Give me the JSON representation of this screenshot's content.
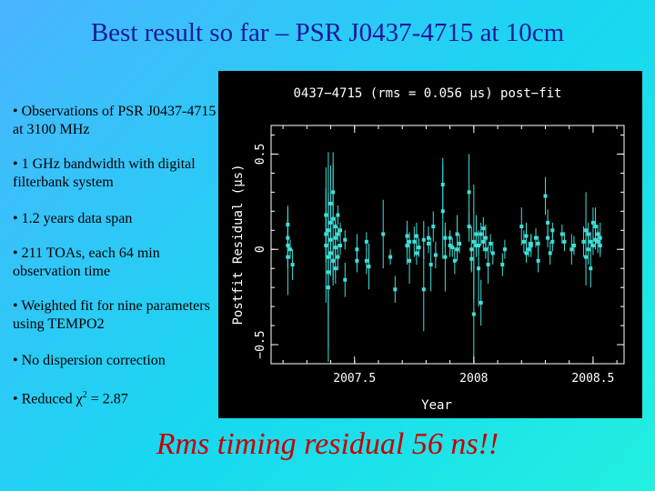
{
  "slide": {
    "title": "Best result so far – PSR J0437-4715 at 10cm",
    "bullets": [
      "• Observations of PSR J0437-4715 at 3100 MHz",
      "• 1 GHz bandwidth with digital filterbank system",
      "• 1.2 years data span",
      "• 211 TOAs, each 64 min observation time",
      "• Weighted fit for nine parameters using TEMPO2",
      "• No dispersion correction"
    ],
    "chi_prefix": "• Reduced ",
    "chi_symbol": "χ",
    "chi_sup": "2",
    "chi_suffix": " = 2.87",
    "footer": "Rms timing residual 56 ns!!"
  },
  "colors": {
    "title": "#1a1a9a",
    "footer": "#c80000",
    "points": "#40e0d8",
    "axes": "#ffffff",
    "plot_bg": "#000000"
  },
  "chart_data": {
    "type": "scatter",
    "title": "0437−4715 (rms = 0.056 μs) post−fit",
    "xlabel": "Year",
    "ylabel": "Postfit Residual (μs)",
    "xlim": [
      2007.15,
      2008.63
    ],
    "ylim": [
      -0.6,
      0.65
    ],
    "xticks": [
      2007.5,
      2008,
      2008.5
    ],
    "xtick_labels": [
      "2007.5",
      "2008",
      "2008.5"
    ],
    "yticks": [
      -0.5,
      0,
      0.5
    ],
    "ytick_labels": [
      "−0.5",
      "0",
      "0.5"
    ],
    "points": [
      [
        2007.22,
        0.13,
        0.1
      ],
      [
        2007.22,
        0.02,
        0.06
      ],
      [
        2007.22,
        -0.04,
        0.2
      ],
      [
        2007.22,
        0.06,
        0.16
      ],
      [
        2007.23,
        0.0,
        0.05
      ],
      [
        2007.24,
        -0.08,
        0.08
      ],
      [
        2007.38,
        0.18,
        0.25
      ],
      [
        2007.38,
        0.08,
        0.12
      ],
      [
        2007.38,
        0.02,
        0.3
      ],
      [
        2007.39,
        -0.04,
        0.55
      ],
      [
        2007.39,
        -0.12,
        0.4
      ],
      [
        2007.39,
        0.1,
        0.2
      ],
      [
        2007.39,
        -0.2,
        0.15
      ],
      [
        2007.4,
        0.24,
        0.2
      ],
      [
        2007.4,
        0.14,
        0.1
      ],
      [
        2007.4,
        0.05,
        0.08
      ],
      [
        2007.4,
        -0.02,
        0.12
      ],
      [
        2007.41,
        0.16,
        0.35
      ],
      [
        2007.41,
        0.3,
        0.15
      ],
      [
        2007.41,
        -0.06,
        0.1
      ],
      [
        2007.42,
        0.12,
        0.05
      ],
      [
        2007.42,
        0.06,
        0.09
      ],
      [
        2007.42,
        0.01,
        0.06
      ],
      [
        2007.42,
        -0.1,
        0.08
      ],
      [
        2007.43,
        0.18,
        0.05
      ],
      [
        2007.43,
        0.08,
        0.04
      ],
      [
        2007.43,
        -0.04,
        0.07
      ],
      [
        2007.44,
        0.02,
        0.05
      ],
      [
        2007.44,
        0.1,
        0.04
      ],
      [
        2007.46,
        0.05,
        0.05
      ],
      [
        2007.46,
        -0.16,
        0.09
      ],
      [
        2007.51,
        0.0,
        0.08
      ],
      [
        2007.51,
        -0.06,
        0.06
      ],
      [
        2007.55,
        -0.06,
        0.07
      ],
      [
        2007.55,
        0.04,
        0.05
      ],
      [
        2007.56,
        -0.09,
        0.12
      ],
      [
        2007.62,
        0.08,
        0.18
      ],
      [
        2007.65,
        -0.04,
        0.04
      ],
      [
        2007.67,
        -0.21,
        0.07
      ],
      [
        2007.72,
        0.02,
        0.1
      ],
      [
        2007.72,
        0.07,
        0.08
      ],
      [
        2007.73,
        -0.06,
        0.12
      ],
      [
        2007.73,
        0.04,
        0.05
      ],
      [
        2007.75,
        0.04,
        0.08
      ],
      [
        2007.76,
        -0.02,
        0.06
      ],
      [
        2007.76,
        0.07,
        0.07
      ],
      [
        2007.77,
        0.01,
        0.05
      ],
      [
        2007.79,
        -0.21,
        0.22
      ],
      [
        2007.79,
        0.05,
        0.1
      ],
      [
        2007.81,
        0.06,
        0.06
      ],
      [
        2007.81,
        0.03,
        0.05
      ],
      [
        2007.82,
        -0.08,
        0.14
      ],
      [
        2007.83,
        0.12,
        0.08
      ],
      [
        2007.84,
        -0.03,
        0.07
      ],
      [
        2007.87,
        0.34,
        0.14
      ],
      [
        2007.87,
        0.2,
        0.25
      ],
      [
        2007.88,
        -0.04,
        0.18
      ],
      [
        2007.88,
        0.06,
        0.05
      ],
      [
        2007.9,
        0.02,
        0.06
      ],
      [
        2007.9,
        0.06,
        0.04
      ],
      [
        2007.91,
        0.01,
        0.05
      ],
      [
        2007.92,
        -0.06,
        0.07
      ],
      [
        2007.93,
        0.08,
        0.1
      ],
      [
        2007.93,
        0.0,
        0.06
      ],
      [
        2007.94,
        0.03,
        0.05
      ],
      [
        2007.98,
        0.3,
        0.2
      ],
      [
        2007.98,
        0.12,
        0.08
      ],
      [
        2007.99,
        0.0,
        0.12
      ],
      [
        2007.99,
        -0.05,
        0.06
      ],
      [
        2008.0,
        0.04,
        0.3
      ],
      [
        2008.0,
        -0.34,
        0.3
      ],
      [
        2008.01,
        0.08,
        0.1
      ],
      [
        2008.01,
        0.02,
        0.06
      ],
      [
        2008.02,
        -0.1,
        0.2
      ],
      [
        2008.02,
        0.02,
        0.05
      ],
      [
        2008.03,
        -0.28,
        0.12
      ],
      [
        2008.03,
        0.08,
        0.06
      ],
      [
        2008.04,
        0.11,
        0.06
      ],
      [
        2008.04,
        0.04,
        0.05
      ],
      [
        2008.05,
        0.0,
        0.05
      ],
      [
        2008.05,
        0.06,
        0.07
      ],
      [
        2008.06,
        -0.08,
        0.1
      ],
      [
        2008.07,
        0.03,
        0.05
      ],
      [
        2008.08,
        -0.02,
        0.06
      ],
      [
        2008.12,
        -0.08,
        0.06
      ],
      [
        2008.13,
        0.0,
        0.05
      ],
      [
        2008.2,
        0.12,
        0.1
      ],
      [
        2008.21,
        0.04,
        0.06
      ],
      [
        2008.22,
        -0.02,
        0.05
      ],
      [
        2008.22,
        0.07,
        0.07
      ],
      [
        2008.23,
        0.0,
        0.04
      ],
      [
        2008.24,
        0.02,
        0.06
      ],
      [
        2008.24,
        0.03,
        0.05
      ],
      [
        2008.26,
        0.06,
        0.05
      ],
      [
        2008.27,
        -0.06,
        0.06
      ],
      [
        2008.27,
        0.03,
        0.04
      ],
      [
        2008.3,
        0.28,
        0.1
      ],
      [
        2008.31,
        0.14,
        0.07
      ],
      [
        2008.31,
        0.06,
        0.05
      ],
      [
        2008.32,
        -0.02,
        0.06
      ],
      [
        2008.33,
        0.04,
        0.05
      ],
      [
        2008.33,
        0.1,
        0.04
      ],
      [
        2008.37,
        0.08,
        0.05
      ],
      [
        2008.38,
        0.04,
        0.05
      ],
      [
        2008.41,
        0.0,
        0.08
      ],
      [
        2008.42,
        0.02,
        0.05
      ],
      [
        2008.46,
        0.04,
        0.08
      ],
      [
        2008.47,
        0.1,
        0.2
      ],
      [
        2008.47,
        -0.04,
        0.15
      ],
      [
        2008.48,
        0.0,
        0.08
      ],
      [
        2008.48,
        0.08,
        0.06
      ],
      [
        2008.49,
        -0.1,
        0.1
      ],
      [
        2008.49,
        0.04,
        0.05
      ],
      [
        2008.5,
        0.14,
        0.08
      ],
      [
        2008.5,
        0.02,
        0.05
      ],
      [
        2008.51,
        0.12,
        0.1
      ],
      [
        2008.51,
        0.05,
        0.05
      ],
      [
        2008.52,
        0.04,
        0.06
      ],
      [
        2008.52,
        0.08,
        0.05
      ],
      [
        2008.53,
        0.02,
        0.06
      ],
      [
        2008.53,
        0.06,
        0.08
      ]
    ]
  }
}
